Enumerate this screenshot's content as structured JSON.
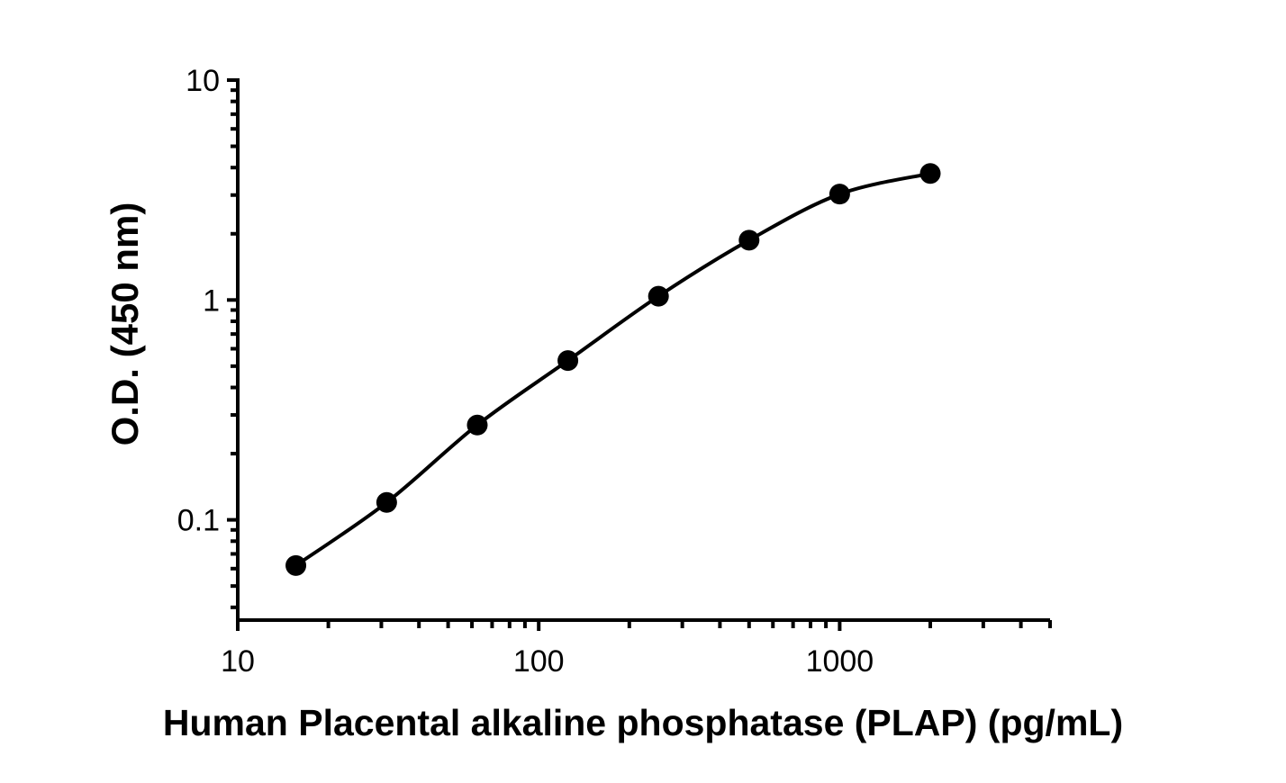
{
  "chart_data": {
    "type": "scatter",
    "title": "",
    "xlabel": "Human Placental alkaline phosphatase (PLAP) (pg/mL)",
    "ylabel": "O.D. (450 nm)",
    "xscale": "log",
    "yscale": "log",
    "xlim": [
      10,
      5000
    ],
    "ylim": [
      0.035,
      10
    ],
    "x_ticks": [
      10,
      100,
      1000
    ],
    "x_tick_labels": [
      "10",
      "100",
      "1000"
    ],
    "y_ticks": [
      0.1,
      1,
      10
    ],
    "y_tick_labels": [
      "0.1",
      "1",
      "10"
    ],
    "grid": false,
    "legend": "none",
    "color": "#000000",
    "fit_line": "smooth curve through points",
    "series": [
      {
        "x": [
          15.6,
          31.25,
          62.5,
          125,
          250,
          500,
          1000,
          2000
        ],
        "y": [
          0.062,
          0.12,
          0.27,
          0.53,
          1.04,
          1.87,
          3.03,
          3.76
        ]
      }
    ]
  }
}
